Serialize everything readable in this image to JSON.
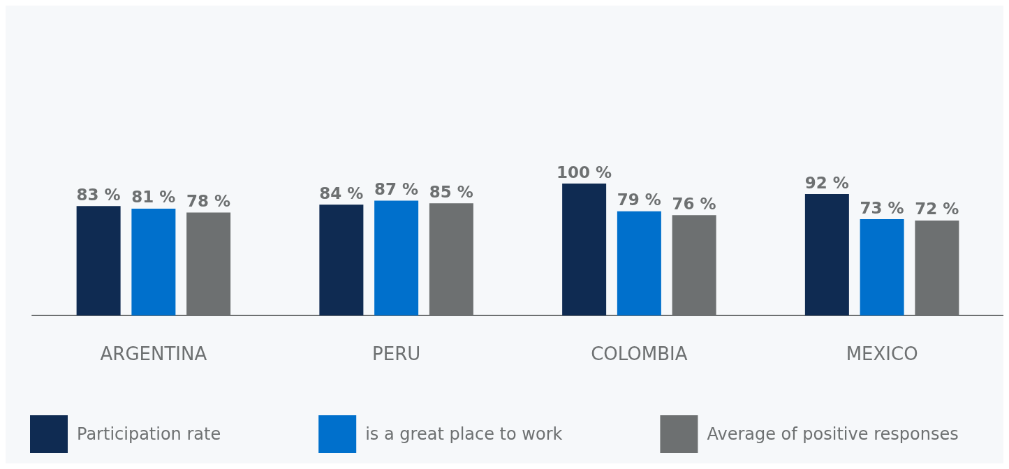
{
  "chart_data": {
    "type": "bar",
    "categories": [
      "ARGENTINA",
      "PERU",
      "COLOMBIA",
      "MEXICO"
    ],
    "series": [
      {
        "name": "Participation rate",
        "color": "#0f2b52",
        "values": [
          83,
          84,
          100,
          92
        ],
        "value_labels": [
          "83 %",
          "84 %",
          "100 %",
          "92 %"
        ]
      },
      {
        "name": "is a great place to work",
        "color": "#0070cc",
        "values": [
          81,
          87,
          79,
          73
        ],
        "value_labels": [
          "81 %",
          "87 %",
          "79 %",
          "73 %"
        ]
      },
      {
        "name": "Average of positive responses",
        "color": "#6d7071",
        "values": [
          78,
          85,
          76,
          72
        ],
        "value_labels": [
          "78 %",
          "85 %",
          "76 %",
          "72 %"
        ]
      }
    ],
    "grid": false,
    "legend": "bottom"
  }
}
